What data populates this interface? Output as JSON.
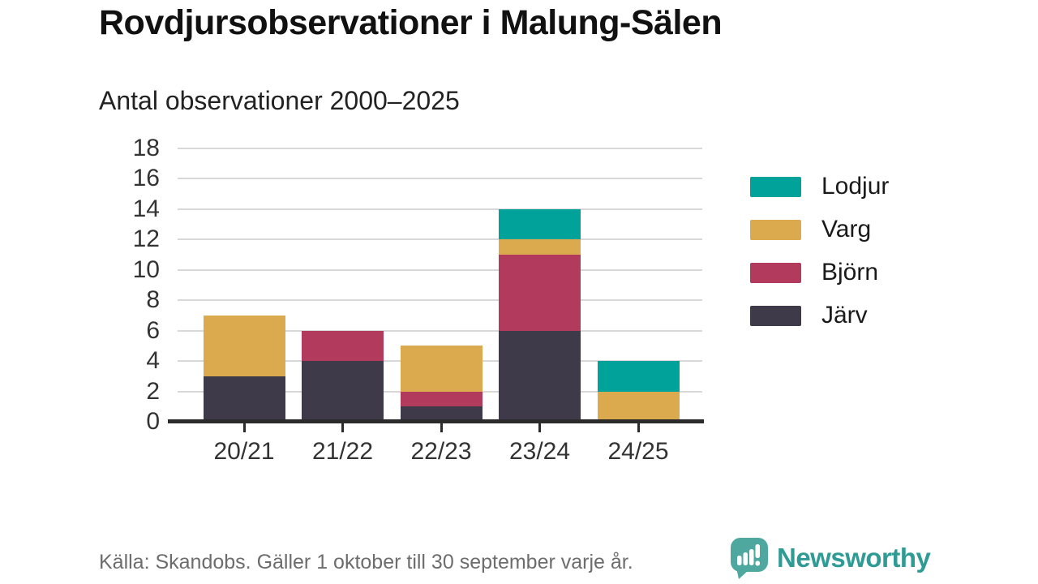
{
  "title": "Rovdjursobservationer i Malung-Sälen",
  "subtitle": "Antal observationer 2000–2025",
  "chart_data": {
    "type": "bar",
    "stacked": true,
    "title": "Rovdjursobservationer i Malung-Sälen",
    "subtitle": "Antal observationer 2000–2025",
    "categories": [
      "20/21",
      "21/22",
      "22/23",
      "23/24",
      "24/25"
    ],
    "series": [
      {
        "name": "Järv",
        "color": "#3E3A4A",
        "values": [
          3,
          4,
          1,
          6,
          0
        ]
      },
      {
        "name": "Björn",
        "color": "#B13A5D",
        "values": [
          0,
          2,
          1,
          5,
          0
        ]
      },
      {
        "name": "Varg",
        "color": "#DBA94E",
        "values": [
          4,
          0,
          3,
          1,
          2
        ]
      },
      {
        "name": "Lodjur",
        "color": "#00A29A",
        "values": [
          0,
          0,
          0,
          2,
          2
        ]
      }
    ],
    "totals": [
      7,
      6,
      5,
      14,
      4
    ],
    "y_ticks": [
      0,
      2,
      4,
      6,
      8,
      10,
      12,
      14,
      16,
      18
    ],
    "ylim": [
      0,
      18
    ],
    "grid": true,
    "legend_position": "right",
    "legend_order": [
      "Lodjur",
      "Varg",
      "Björn",
      "Järv"
    ]
  },
  "footer": {
    "source": "Källa: Skandobs. Gäller 1 oktober till 30 september varje år.",
    "brand": "Newsworthy"
  },
  "icons": {
    "brand_logo": "newsworthy-speech-bubble-bar-chart-icon"
  },
  "colors": {
    "grid": "#D8D8D8",
    "axis": "#2B2B2B",
    "tick_label": "#333333",
    "title": "#111111",
    "footer_text": "#6D6D6D",
    "brand_teal": "#2E9C94",
    "logo_bubble": "#4FA8A0"
  }
}
